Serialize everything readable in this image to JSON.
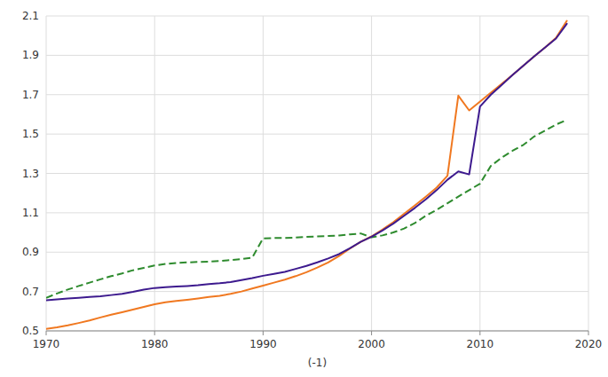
{
  "chart_data": {
    "type": "line",
    "xlabel": "(-1)",
    "background_color": "#ffffff",
    "grid": true,
    "xlim": [
      1970,
      2020
    ],
    "ylim": [
      0.5,
      2.1
    ],
    "xticks": [
      1970,
      1980,
      1990,
      2000,
      2010,
      2020
    ],
    "yticks": [
      0.5,
      0.7,
      0.9,
      1.1,
      1.3,
      1.5,
      1.7,
      1.9,
      2.1
    ],
    "x": [
      1970,
      1971,
      1972,
      1973,
      1974,
      1975,
      1976,
      1977,
      1978,
      1979,
      1980,
      1981,
      1982,
      1983,
      1984,
      1985,
      1986,
      1987,
      1988,
      1989,
      1990,
      1991,
      1992,
      1993,
      1994,
      1995,
      1996,
      1997,
      1998,
      1999,
      2000,
      2001,
      2002,
      2003,
      2004,
      2005,
      2006,
      2007,
      2008,
      2009,
      2010,
      2011,
      2012,
      2013,
      2014,
      2015,
      2016,
      2017,
      2018
    ],
    "series": [
      {
        "color": "#f07820",
        "line_style": "solid",
        "values": [
          0.51,
          0.518,
          0.528,
          0.54,
          0.553,
          0.568,
          0.582,
          0.595,
          0.608,
          0.622,
          0.635,
          0.645,
          0.652,
          0.658,
          0.665,
          0.672,
          0.678,
          0.688,
          0.7,
          0.715,
          0.73,
          0.745,
          0.76,
          0.778,
          0.798,
          0.822,
          0.848,
          0.88,
          0.918,
          0.952,
          0.98,
          1.015,
          1.052,
          1.095,
          1.138,
          1.182,
          1.228,
          1.288,
          1.695,
          1.62,
          1.665,
          1.71,
          1.755,
          1.8,
          1.848,
          1.895,
          1.94,
          1.988,
          2.075
        ]
      },
      {
        "color": "#3d1a8e",
        "line_style": "solid",
        "values": [
          0.655,
          0.66,
          0.665,
          0.668,
          0.672,
          0.676,
          0.682,
          0.688,
          0.698,
          0.71,
          0.718,
          0.722,
          0.725,
          0.728,
          0.732,
          0.738,
          0.742,
          0.748,
          0.758,
          0.768,
          0.78,
          0.79,
          0.8,
          0.815,
          0.83,
          0.848,
          0.868,
          0.89,
          0.92,
          0.952,
          0.978,
          1.01,
          1.045,
          1.085,
          1.125,
          1.168,
          1.215,
          1.268,
          1.31,
          1.295,
          1.64,
          1.7,
          1.75,
          1.8,
          1.848,
          1.895,
          1.94,
          1.985,
          2.06
        ]
      },
      {
        "color": "#2e8b2e",
        "line_style": "dashed",
        "values": [
          0.668,
          0.69,
          0.71,
          0.728,
          0.745,
          0.762,
          0.778,
          0.792,
          0.808,
          0.82,
          0.832,
          0.84,
          0.845,
          0.848,
          0.85,
          0.852,
          0.855,
          0.86,
          0.865,
          0.872,
          0.97,
          0.972,
          0.972,
          0.974,
          0.978,
          0.98,
          0.982,
          0.985,
          0.99,
          0.995,
          0.975,
          0.985,
          1.0,
          1.02,
          1.048,
          1.085,
          1.115,
          1.148,
          1.182,
          1.215,
          1.248,
          1.338,
          1.38,
          1.415,
          1.445,
          1.488,
          1.518,
          1.548,
          1.572
        ]
      }
    ]
  }
}
